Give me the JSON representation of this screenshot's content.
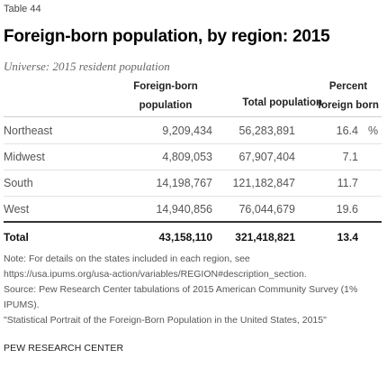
{
  "table_label": "Table 44",
  "title": "Foreign-born population, by region: 2015",
  "universe": "Universe: 2015 resident population",
  "columns": {
    "foreign_born_line1": "Foreign-born",
    "foreign_born_line2": "population",
    "total": "Total population",
    "percent_line1": "Percent",
    "percent_line2": "foreign born"
  },
  "rows": [
    {
      "region": "Northeast",
      "foreign_born": "9,209,434",
      "total": "56,283,891",
      "percent": "16.4",
      "suffix": "%"
    },
    {
      "region": "Midwest",
      "foreign_born": "4,809,053",
      "total": "67,907,404",
      "percent": "7.1",
      "suffix": ""
    },
    {
      "region": "South",
      "foreign_born": "14,198,767",
      "total": "121,182,847",
      "percent": "11.7",
      "suffix": ""
    },
    {
      "region": "West",
      "foreign_born": "14,940,856",
      "total": "76,044,679",
      "percent": "19.6",
      "suffix": ""
    }
  ],
  "total_row": {
    "region": "Total",
    "foreign_born": "43,158,110",
    "total": "321,418,821",
    "percent": "13.4"
  },
  "notes": [
    "Note: For details on the states included in each region, see",
    "https://usa.ipums.org/usa-action/variables/REGION#description_section.",
    "Source: Pew Research Center tabulations of 2015 American Community Survey (1%",
    "IPUMS).",
    "\"Statistical Portrait of the Foreign-Born Population in the United States, 2015\""
  ],
  "footer": "PEW RESEARCH CENTER",
  "chart_data": {
    "type": "table",
    "title": "Foreign-born population, by region: 2015",
    "subtitle": "Universe: 2015 resident population",
    "columns": [
      "Foreign-born population",
      "Total population",
      "Percent foreign born"
    ],
    "categories": [
      "Northeast",
      "Midwest",
      "South",
      "West",
      "Total"
    ],
    "series": [
      {
        "name": "Foreign-born population",
        "values": [
          9209434,
          4809053,
          14198767,
          14940856,
          43158110
        ]
      },
      {
        "name": "Total population",
        "values": [
          56283891,
          67907404,
          121182847,
          76044679,
          321418821
        ]
      },
      {
        "name": "Percent foreign born",
        "values": [
          16.4,
          7.1,
          11.7,
          19.6,
          13.4
        ]
      }
    ]
  }
}
